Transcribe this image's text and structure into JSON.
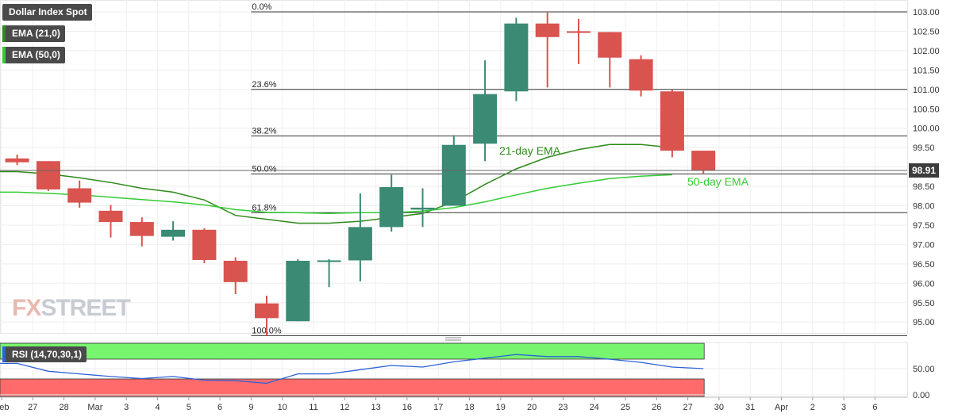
{
  "legend": {
    "title": "Dollar Index Spot",
    "ema21": "EMA (21,0)",
    "ema50": "EMA (50,0)",
    "rsi": "RSI (14,70,30,1)"
  },
  "watermark": {
    "part1": "FX",
    "part2": "STREET"
  },
  "colors": {
    "up": "#3a8a74",
    "down": "#d9534f",
    "ema21": "#2e8b1a",
    "ema50": "#33cc33",
    "rsi_line": "#2d62d8",
    "rsi_overbought": "#77f56e",
    "rsi_oversold": "#ff6b6b"
  },
  "chart_data": [
    {
      "type": "candlestick",
      "title": "Dollar Index Spot",
      "x_labels": [
        "Feb",
        "27",
        "28",
        "Mar",
        "3",
        "4",
        "5",
        "6",
        "9",
        "10",
        "11",
        "12",
        "13",
        "16",
        "17",
        "18",
        "19",
        "20",
        "23",
        "24",
        "25",
        "26",
        "27",
        "30",
        "31",
        "Apr",
        "2",
        "3",
        "6"
      ],
      "ylim": [
        94.65,
        103.2
      ],
      "y_ticks": [
        "95.00",
        "95.50",
        "96.00",
        "96.50",
        "97.00",
        "97.50",
        "98.00",
        "98.50",
        "99.00",
        "99.50",
        "100.00",
        "100.50",
        "101.00",
        "101.50",
        "102.00",
        "102.50",
        "103.00"
      ],
      "last_price": "98.91",
      "candles": [
        {
          "x": "26",
          "open": 99.22,
          "high": 99.32,
          "low": 99.05,
          "close": 99.12
        },
        {
          "x": "27",
          "open": 99.15,
          "high": 99.15,
          "low": 98.38,
          "close": 98.42
        },
        {
          "x": "28",
          "open": 98.45,
          "high": 98.65,
          "low": 97.95,
          "close": 98.08
        },
        {
          "x": "Mar",
          "open": 97.87,
          "high": 98.02,
          "low": 97.18,
          "close": 97.58
        },
        {
          "x": "3",
          "open": 97.58,
          "high": 97.7,
          "low": 96.95,
          "close": 97.22
        },
        {
          "x": "4",
          "open": 97.2,
          "high": 97.6,
          "low": 97.1,
          "close": 97.38
        },
        {
          "x": "5",
          "open": 97.38,
          "high": 97.42,
          "low": 96.52,
          "close": 96.6
        },
        {
          "x": "6",
          "open": 96.58,
          "high": 96.67,
          "low": 95.72,
          "close": 96.03
        },
        {
          "x": "9",
          "open": 95.48,
          "high": 95.68,
          "low": 94.65,
          "close": 95.1
        },
        {
          "x": "10",
          "open": 95.02,
          "high": 96.62,
          "low": 95.02,
          "close": 96.58
        },
        {
          "x": "11",
          "open": 96.57,
          "high": 96.62,
          "low": 95.9,
          "close": 96.59
        },
        {
          "x": "12",
          "open": 96.59,
          "high": 98.32,
          "low": 96.05,
          "close": 97.45
        },
        {
          "x": "13",
          "open": 97.45,
          "high": 98.8,
          "low": 97.33,
          "close": 98.48
        },
        {
          "x": "16",
          "open": 97.9,
          "high": 98.45,
          "low": 97.45,
          "close": 97.95
        },
        {
          "x": "17",
          "open": 98.0,
          "high": 99.82,
          "low": 98.0,
          "close": 99.57
        },
        {
          "x": "18",
          "open": 99.6,
          "high": 101.75,
          "low": 99.15,
          "close": 100.88
        },
        {
          "x": "19",
          "open": 100.95,
          "high": 102.85,
          "low": 100.7,
          "close": 102.7
        },
        {
          "x": "20",
          "open": 102.7,
          "high": 103.0,
          "low": 101.05,
          "close": 102.35
        },
        {
          "x": "23",
          "open": 102.5,
          "high": 102.82,
          "low": 101.65,
          "close": 102.48
        },
        {
          "x": "24",
          "open": 102.48,
          "high": 102.48,
          "low": 101.05,
          "close": 101.82
        },
        {
          "x": "25",
          "open": 101.78,
          "high": 101.88,
          "low": 100.82,
          "close": 100.97
        },
        {
          "x": "26",
          "open": 100.95,
          "high": 101.0,
          "low": 99.25,
          "close": 99.42
        },
        {
          "x": "27",
          "open": 99.42,
          "high": 99.42,
          "low": 98.82,
          "close": 98.91
        }
      ],
      "series": [
        {
          "name": "EMA (21,0)",
          "annotation": "21-day EMA",
          "values": [
            98.88,
            98.82,
            98.72,
            98.6,
            98.45,
            98.35,
            98.15,
            97.75,
            97.65,
            97.55,
            97.55,
            97.6,
            97.7,
            97.8,
            98.1,
            98.55,
            98.95,
            99.25,
            99.45,
            99.58,
            99.58,
            99.5
          ]
        },
        {
          "name": "EMA (50,0)",
          "annotation": "50-day EMA",
          "values": [
            98.35,
            98.32,
            98.28,
            98.22,
            98.16,
            98.1,
            98.02,
            97.9,
            97.83,
            97.82,
            97.8,
            97.82,
            97.82,
            97.86,
            97.95,
            98.1,
            98.28,
            98.45,
            98.58,
            98.7,
            98.76,
            98.8
          ]
        }
      ],
      "fibonacci": [
        {
          "label": "0.0%",
          "value": 103.0
        },
        {
          "label": "23.6%",
          "value": 101.0
        },
        {
          "label": "38.2%",
          "value": 99.8
        },
        {
          "label": "50.0%",
          "value": 98.82
        },
        {
          "label": "61.8%",
          "value": 97.82
        },
        {
          "label": "100.0%",
          "value": 94.65
        }
      ]
    },
    {
      "type": "line",
      "title": "RSI (14,70,30,1)",
      "ylim": [
        0,
        100
      ],
      "y_ticks": [
        "50.00",
        "0.00"
      ],
      "overbought": 70,
      "oversold": 30,
      "series": [
        {
          "name": "RSI (14,70,30,1)",
          "values": [
            60,
            45,
            40,
            35,
            31,
            35,
            28,
            27,
            22,
            40,
            40,
            48,
            56,
            53,
            63,
            70,
            77,
            73,
            73,
            68,
            62,
            53,
            50
          ]
        }
      ]
    }
  ]
}
